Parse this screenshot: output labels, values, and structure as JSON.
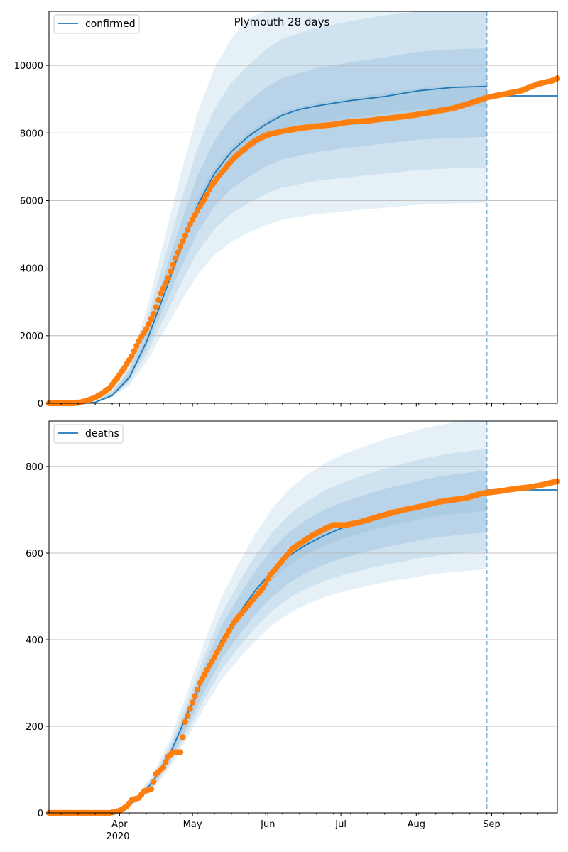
{
  "title": "Plymouth 28 days",
  "colors": {
    "model": "#1f77b4",
    "observed": "#ff7f0e",
    "band": "#1f77b4",
    "forecast_line": "#1f77b4",
    "grid": "#b0b0b0"
  },
  "x_axis": {
    "range": [
      "2020-03-03",
      "2020-09-28"
    ],
    "year_label": "2020",
    "major_ticks": [
      {
        "date": "2020-04-01",
        "label": "Apr"
      },
      {
        "date": "2020-05-01",
        "label": "May"
      },
      {
        "date": "2020-06-01",
        "label": "Jun"
      },
      {
        "date": "2020-07-01",
        "label": "Jul"
      },
      {
        "date": "2020-08-01",
        "label": "Aug"
      },
      {
        "date": "2020-09-01",
        "label": "Sep"
      }
    ],
    "forecast_start": "2020-08-30"
  },
  "chart_data": [
    {
      "type": "line",
      "legend": "confirmed",
      "legend_position": "top-left",
      "grid": "y",
      "ylim": [
        0,
        11600
      ],
      "yticks": [
        0,
        2000,
        4000,
        6000,
        8000,
        10000
      ],
      "model": [
        [
          "2020-03-03",
          0
        ],
        [
          "2020-03-15",
          0
        ],
        [
          "2020-03-22",
          30
        ],
        [
          "2020-03-29",
          230
        ],
        [
          "2020-04-05",
          760
        ],
        [
          "2020-04-12",
          1800
        ],
        [
          "2020-04-19",
          3150
        ],
        [
          "2020-04-26",
          4550
        ],
        [
          "2020-05-03",
          5850
        ],
        [
          "2020-05-10",
          6800
        ],
        [
          "2020-05-17",
          7450
        ],
        [
          "2020-05-24",
          7900
        ],
        [
          "2020-05-31",
          8250
        ],
        [
          "2020-06-07",
          8530
        ],
        [
          "2020-06-14",
          8700
        ],
        [
          "2020-06-21",
          8800
        ],
        [
          "2020-06-28",
          8880
        ],
        [
          "2020-07-05",
          8960
        ],
        [
          "2020-07-19",
          9080
        ],
        [
          "2020-08-02",
          9250
        ],
        [
          "2020-08-16",
          9350
        ],
        [
          "2020-08-30",
          9380
        ]
      ],
      "forecast": [
        [
          "2020-08-30",
          9100
        ],
        [
          "2020-09-28",
          9100
        ]
      ],
      "bands_median": [
        [
          "2020-03-03",
          0
        ],
        [
          "2020-03-22",
          40
        ],
        [
          "2020-03-29",
          280
        ],
        [
          "2020-04-05",
          800
        ],
        [
          "2020-04-12",
          1850
        ],
        [
          "2020-04-19",
          3200
        ],
        [
          "2020-04-26",
          4550
        ],
        [
          "2020-05-03",
          5800
        ],
        [
          "2020-05-10",
          6700
        ],
        [
          "2020-05-17",
          7300
        ],
        [
          "2020-05-24",
          7700
        ],
        [
          "2020-05-31",
          8050
        ],
        [
          "2020-06-07",
          8300
        ],
        [
          "2020-06-21",
          8550
        ],
        [
          "2020-07-05",
          8700
        ],
        [
          "2020-07-19",
          8830
        ],
        [
          "2020-08-02",
          8970
        ],
        [
          "2020-08-16",
          9030
        ],
        [
          "2020-08-30",
          9060
        ]
      ],
      "bands": [
        {
          "up": 1.48,
          "lo": 0.655,
          "opacity": 0.11
        },
        {
          "up": 1.3,
          "lo": 0.77,
          "opacity": 0.11
        },
        {
          "up": 1.16,
          "lo": 0.87,
          "opacity": 0.12
        },
        {
          "up": 1.04,
          "lo": 0.97,
          "opacity": 0.08
        }
      ],
      "observed": [
        [
          "2020-03-03",
          0
        ],
        [
          "2020-03-13",
          0
        ],
        [
          "2020-03-16",
          30
        ],
        [
          "2020-03-19",
          90
        ],
        [
          "2020-03-22",
          170
        ],
        [
          "2020-03-25",
          300
        ],
        [
          "2020-03-28",
          460
        ],
        [
          "2020-03-31",
          740
        ],
        [
          "2020-04-03",
          1050
        ],
        [
          "2020-04-06",
          1400
        ],
        [
          "2020-04-09",
          1850
        ],
        [
          "2020-04-12",
          2200
        ],
        [
          "2020-04-15",
          2650
        ],
        [
          "2020-04-18",
          3250
        ],
        [
          "2020-04-21",
          3700
        ],
        [
          "2020-04-24",
          4300
        ],
        [
          "2020-04-27",
          4800
        ],
        [
          "2020-04-30",
          5300
        ],
        [
          "2020-05-03",
          5700
        ],
        [
          "2020-05-06",
          6050
        ],
        [
          "2020-05-09",
          6450
        ],
        [
          "2020-05-12",
          6750
        ],
        [
          "2020-05-15",
          7000
        ],
        [
          "2020-05-18",
          7250
        ],
        [
          "2020-05-21",
          7450
        ],
        [
          "2020-05-24",
          7620
        ],
        [
          "2020-05-27",
          7780
        ],
        [
          "2020-05-30",
          7890
        ],
        [
          "2020-06-02",
          7970
        ],
        [
          "2020-06-07",
          8050
        ],
        [
          "2020-06-14",
          8140
        ],
        [
          "2020-06-21",
          8200
        ],
        [
          "2020-06-28",
          8250
        ],
        [
          "2020-07-05",
          8330
        ],
        [
          "2020-07-12",
          8360
        ],
        [
          "2020-07-19",
          8420
        ],
        [
          "2020-07-26",
          8480
        ],
        [
          "2020-08-02",
          8550
        ],
        [
          "2020-08-09",
          8640
        ],
        [
          "2020-08-16",
          8730
        ],
        [
          "2020-08-23",
          8880
        ],
        [
          "2020-08-30",
          9050
        ],
        [
          "2020-09-06",
          9150
        ],
        [
          "2020-09-13",
          9250
        ],
        [
          "2020-09-20",
          9450
        ],
        [
          "2020-09-26",
          9550
        ],
        [
          "2020-09-28",
          9620
        ]
      ]
    },
    {
      "type": "line",
      "legend": "deaths",
      "legend_position": "top-left",
      "grid": "y",
      "ylim": [
        0,
        905
      ],
      "yticks": [
        0,
        200,
        400,
        600,
        800
      ],
      "model": [
        [
          "2020-03-03",
          0
        ],
        [
          "2020-03-25",
          0
        ],
        [
          "2020-04-01",
          5
        ],
        [
          "2020-04-08",
          30
        ],
        [
          "2020-04-15",
          75
        ],
        [
          "2020-04-22",
          140
        ],
        [
          "2020-04-29",
          230
        ],
        [
          "2020-05-06",
          320
        ],
        [
          "2020-05-13",
          400
        ],
        [
          "2020-05-20",
          460
        ],
        [
          "2020-05-27",
          515
        ],
        [
          "2020-06-03",
          560
        ],
        [
          "2020-06-10",
          595
        ],
        [
          "2020-06-17",
          620
        ],
        [
          "2020-06-24",
          640
        ],
        [
          "2020-07-01",
          657
        ],
        [
          "2020-07-08",
          670
        ],
        [
          "2020-07-15",
          682
        ],
        [
          "2020-07-22",
          693
        ],
        [
          "2020-07-29",
          702
        ],
        [
          "2020-08-05",
          712
        ],
        [
          "2020-08-12",
          720
        ],
        [
          "2020-08-19",
          727
        ],
        [
          "2020-08-26",
          733
        ],
        [
          "2020-08-30",
          737
        ]
      ],
      "forecast": [
        [
          "2020-08-30",
          746
        ],
        [
          "2020-09-28",
          746
        ]
      ],
      "bands_median": [
        [
          "2020-03-03",
          0
        ],
        [
          "2020-03-25",
          1
        ],
        [
          "2020-04-01",
          6
        ],
        [
          "2020-04-08",
          30
        ],
        [
          "2020-04-15",
          72
        ],
        [
          "2020-04-22",
          135
        ],
        [
          "2020-04-29",
          220
        ],
        [
          "2020-05-06",
          310
        ],
        [
          "2020-05-13",
          390
        ],
        [
          "2020-05-20",
          450
        ],
        [
          "2020-05-27",
          505
        ],
        [
          "2020-06-03",
          550
        ],
        [
          "2020-06-10",
          585
        ],
        [
          "2020-06-17",
          610
        ],
        [
          "2020-06-24",
          630
        ],
        [
          "2020-07-01",
          645
        ],
        [
          "2020-07-08",
          657
        ],
        [
          "2020-07-15",
          668
        ],
        [
          "2020-07-22",
          678
        ],
        [
          "2020-07-29",
          686
        ],
        [
          "2020-08-05",
          695
        ],
        [
          "2020-08-12",
          701
        ],
        [
          "2020-08-19",
          706
        ],
        [
          "2020-08-26",
          710
        ],
        [
          "2020-08-30",
          712
        ]
      ],
      "bands": [
        {
          "up": 1.28,
          "lo": 0.79,
          "opacity": 0.11
        },
        {
          "up": 1.18,
          "lo": 0.85,
          "opacity": 0.11
        },
        {
          "up": 1.11,
          "lo": 0.91,
          "opacity": 0.12
        },
        {
          "up": 1.03,
          "lo": 0.98,
          "opacity": 0.08
        }
      ],
      "observed": [
        [
          "2020-03-03",
          0
        ],
        [
          "2020-03-28",
          0
        ],
        [
          "2020-04-01",
          5
        ],
        [
          "2020-04-04",
          15
        ],
        [
          "2020-04-06",
          30
        ],
        [
          "2020-04-09",
          35
        ],
        [
          "2020-04-11",
          50
        ],
        [
          "2020-04-14",
          55
        ],
        [
          "2020-04-16",
          90
        ],
        [
          "2020-04-19",
          105
        ],
        [
          "2020-04-21",
          130
        ],
        [
          "2020-04-23",
          140
        ],
        [
          "2020-04-26",
          140
        ],
        [
          "2020-04-28",
          210
        ],
        [
          "2020-04-30",
          240
        ],
        [
          "2020-05-02",
          270
        ],
        [
          "2020-05-04",
          300
        ],
        [
          "2020-05-06",
          320
        ],
        [
          "2020-05-09",
          350
        ],
        [
          "2020-05-12",
          380
        ],
        [
          "2020-05-15",
          410
        ],
        [
          "2020-05-18",
          440
        ],
        [
          "2020-05-21",
          460
        ],
        [
          "2020-05-24",
          480
        ],
        [
          "2020-05-27",
          500
        ],
        [
          "2020-05-30",
          520
        ],
        [
          "2020-06-02",
          550
        ],
        [
          "2020-06-05",
          570
        ],
        [
          "2020-06-08",
          590
        ],
        [
          "2020-06-11",
          610
        ],
        [
          "2020-06-15",
          625
        ],
        [
          "2020-06-19",
          640
        ],
        [
          "2020-06-24",
          655
        ],
        [
          "2020-06-28",
          665
        ],
        [
          "2020-07-03",
          665
        ],
        [
          "2020-07-08",
          670
        ],
        [
          "2020-07-14",
          680
        ],
        [
          "2020-07-20",
          690
        ],
        [
          "2020-07-27",
          700
        ],
        [
          "2020-08-03",
          708
        ],
        [
          "2020-08-10",
          718
        ],
        [
          "2020-08-16",
          723
        ],
        [
          "2020-08-22",
          728
        ],
        [
          "2020-08-28",
          738
        ],
        [
          "2020-09-03",
          742
        ],
        [
          "2020-09-10",
          748
        ],
        [
          "2020-09-16",
          752
        ],
        [
          "2020-09-22",
          758
        ],
        [
          "2020-09-28",
          766
        ]
      ]
    }
  ]
}
